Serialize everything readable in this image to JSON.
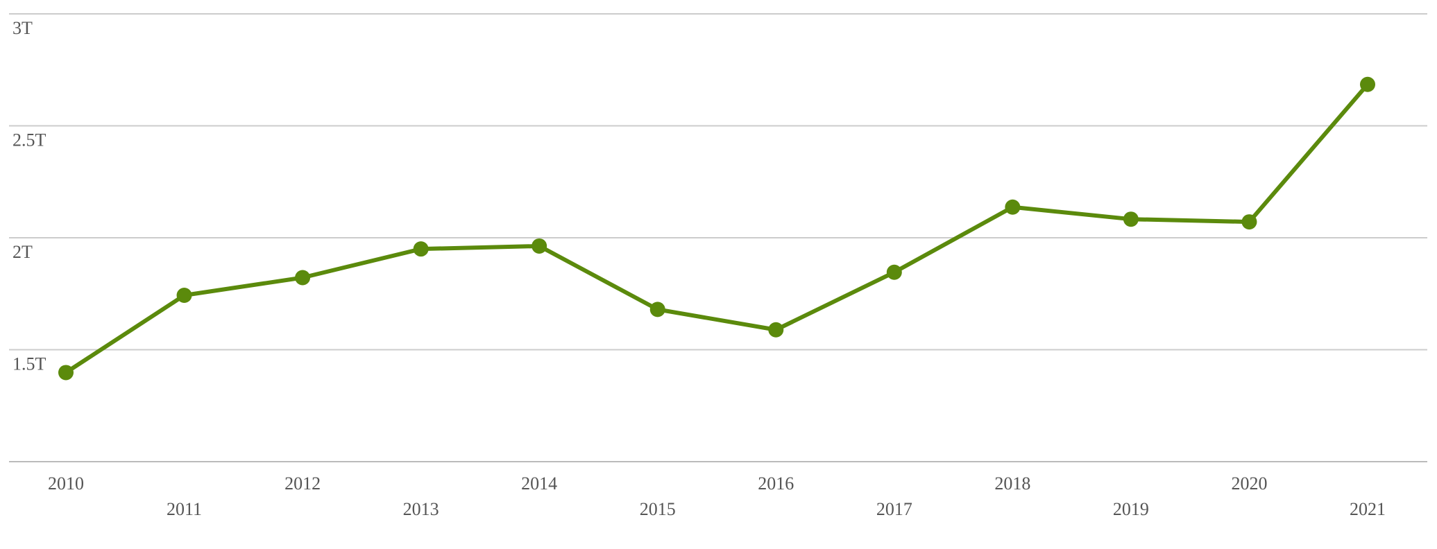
{
  "chart_data": {
    "type": "line",
    "categories": [
      "2010",
      "2011",
      "2012",
      "2013",
      "2014",
      "2015",
      "2016",
      "2017",
      "2018",
      "2019",
      "2020",
      "2021"
    ],
    "series": [
      {
        "color": "#5b8a0c",
        "values": [
          1398000000000,
          1743000000000,
          1822000000000,
          1950000000000,
          1963000000000,
          1680000000000,
          1589000000000,
          1846000000000,
          2137000000000,
          2083000000000,
          2071000000000,
          2685000000000
        ]
      }
    ],
    "ylim": [
      1000000000000,
      3000000000000
    ],
    "yticks": [
      {
        "value": 1500000000000,
        "label": "1.5T"
      },
      {
        "value": 2000000000000,
        "label": "2T"
      },
      {
        "value": 2500000000000,
        "label": "2.5T"
      },
      {
        "value": 3000000000000,
        "label": "3T"
      }
    ],
    "grid": true,
    "markers": true
  }
}
